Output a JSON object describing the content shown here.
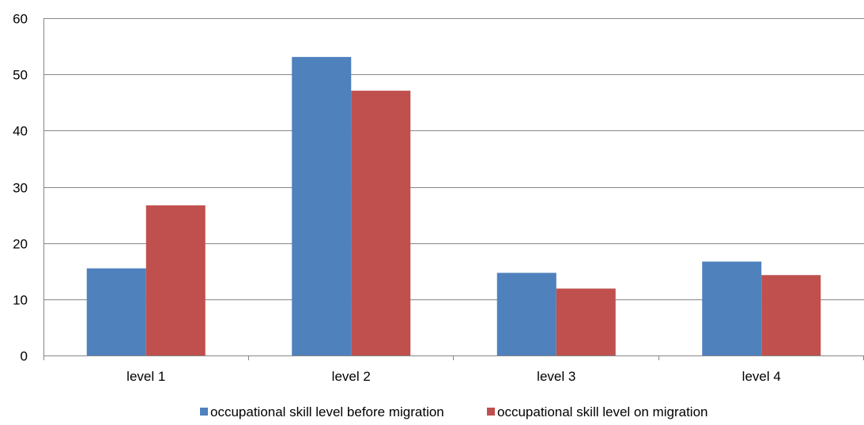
{
  "chart_data": {
    "type": "bar",
    "categories": [
      "level 1",
      "level 2",
      "level 3",
      "level 4"
    ],
    "series": [
      {
        "name": "occupational skill level before migration",
        "color": "#4f81bd",
        "values": [
          15.5,
          53.1,
          14.7,
          16.7
        ]
      },
      {
        "name": "occupational skill level on migration",
        "color": "#c0504d",
        "values": [
          26.7,
          47.1,
          11.9,
          14.3
        ]
      }
    ],
    "ylim": [
      0,
      60
    ],
    "yticks": [
      0,
      10,
      20,
      30,
      40,
      50,
      60
    ],
    "grid": true,
    "legend": "bottom",
    "title": "",
    "xlabel": "",
    "ylabel": ""
  }
}
